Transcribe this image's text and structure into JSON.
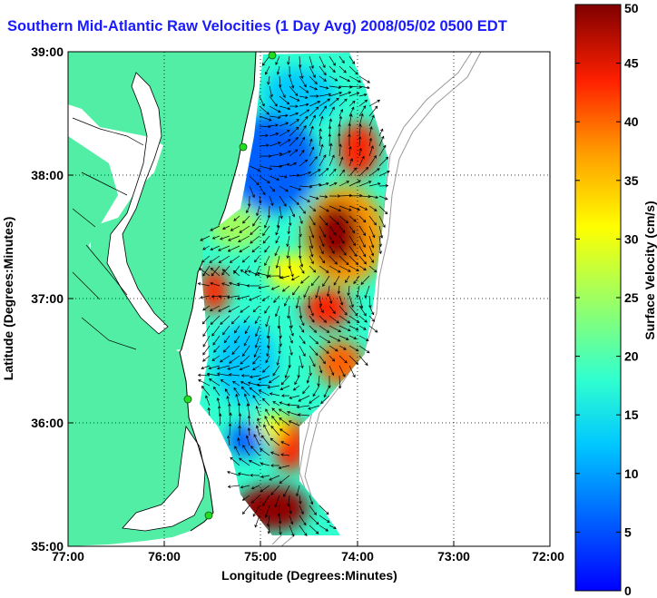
{
  "title": "Southern Mid-Atlantic Raw Velocities (1 Day Avg) 2008/05/02 0500 EDT",
  "map": {
    "xlabel": "Longitude (Degrees:Minutes)",
    "ylabel": "Latitude (Degrees:Minutes)",
    "x_ticks": [
      "77:00",
      "76:00",
      "75:00",
      "74:00",
      "73:00",
      "72:00"
    ],
    "y_ticks": [
      "39:00",
      "38:00",
      "37:00",
      "36:00",
      "35:00"
    ],
    "colors": {
      "land": "#52eea6",
      "water": "#ffffff",
      "coast": "#000000",
      "bathymetry": "#9a9a9a",
      "station": "#22dd22"
    }
  },
  "colorbar": {
    "label": "Surface Velocity (cm/s)",
    "ticks": [
      "0",
      "5",
      "10",
      "15",
      "20",
      "25",
      "30",
      "35",
      "40",
      "45",
      "50"
    ],
    "min": 0,
    "max": 50
  }
}
